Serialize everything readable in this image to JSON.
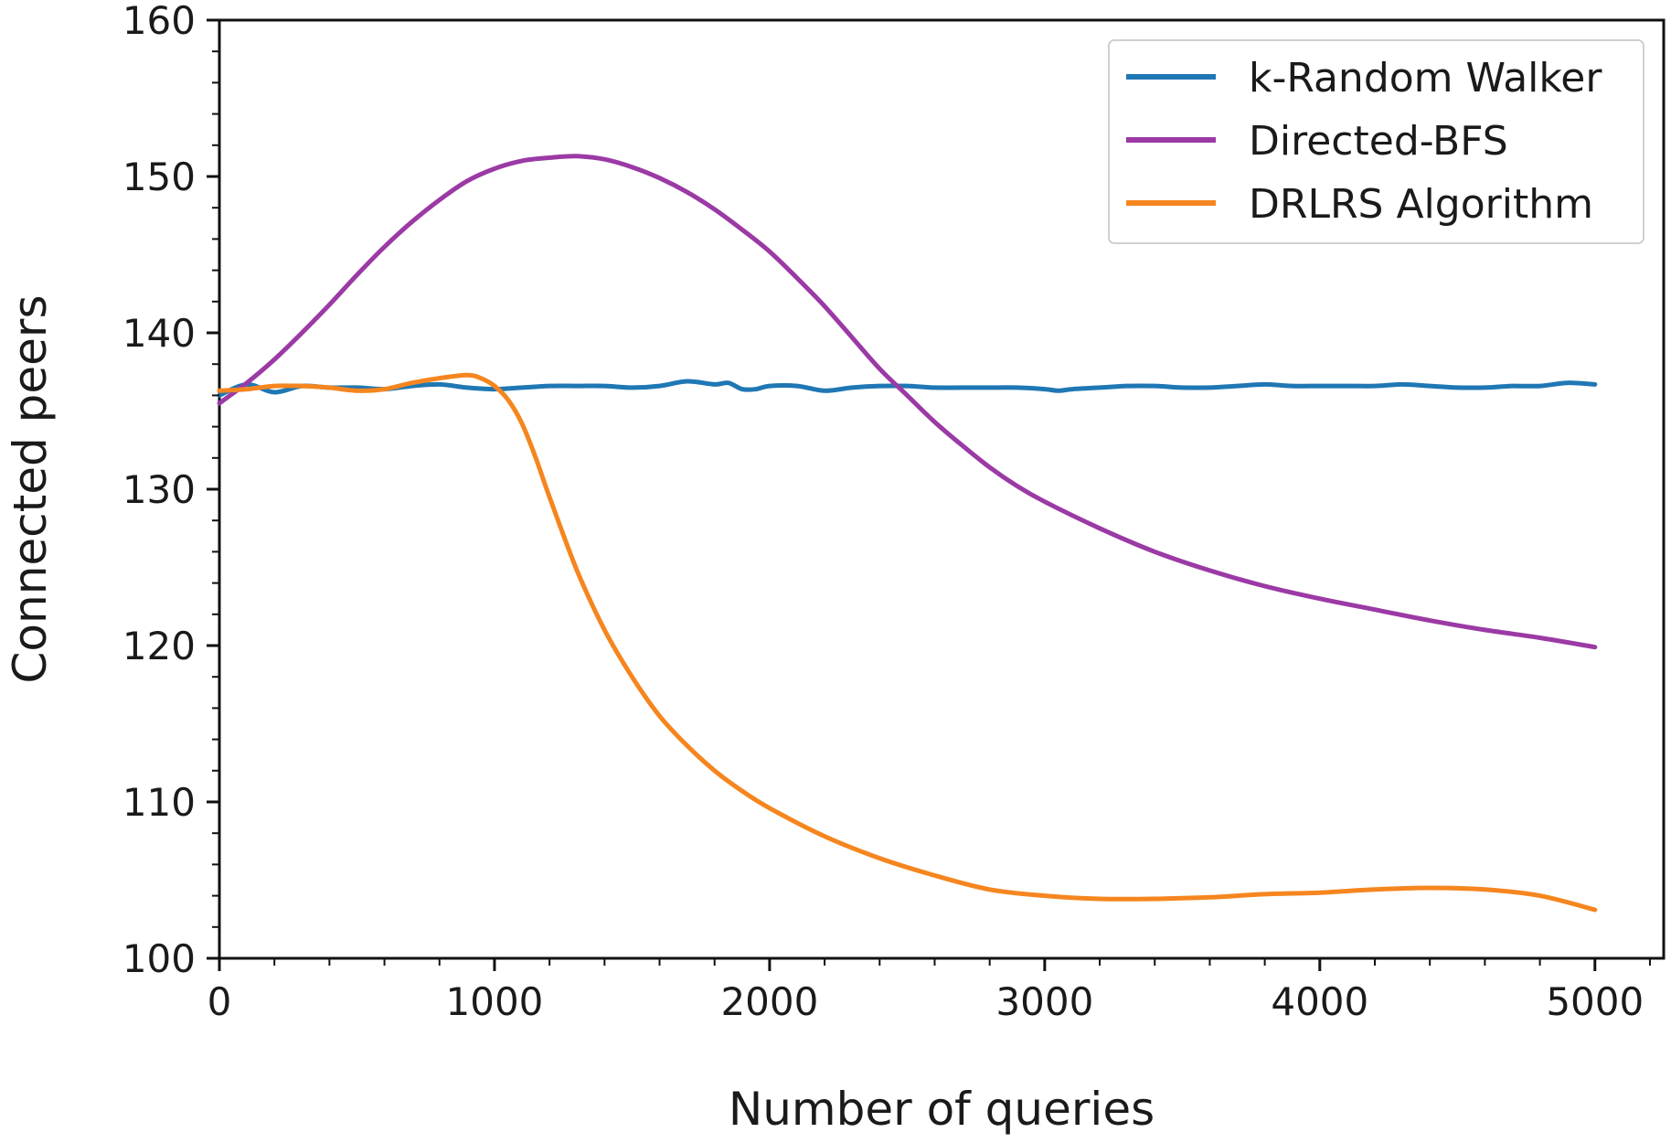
{
  "chart_data": {
    "type": "line",
    "xlabel": "Number of queries",
    "ylabel": "Connected peers",
    "xlim": [
      0,
      5250
    ],
    "ylim": [
      100,
      160
    ],
    "xticks": [
      0,
      1000,
      2000,
      3000,
      4000,
      5000
    ],
    "yticks": [
      100,
      110,
      120,
      130,
      140,
      150,
      160
    ],
    "xtick_labels": [
      "0",
      "1000",
      "2000",
      "3000",
      "4000",
      "5000"
    ],
    "ytick_labels": [
      "100",
      "110",
      "120",
      "130",
      "140",
      "150",
      "160"
    ],
    "grid": false,
    "legend_position": "top-right",
    "series": [
      {
        "name": "k-Random Walker",
        "color": "#1f77b4",
        "x": [
          0,
          100,
          200,
          300,
          400,
          500,
          600,
          700,
          800,
          900,
          1000,
          1100,
          1200,
          1300,
          1400,
          1500,
          1600,
          1700,
          1800,
          1850,
          1900,
          1950,
          2000,
          2100,
          2200,
          2300,
          2400,
          2500,
          2600,
          2700,
          2800,
          2900,
          3000,
          3050,
          3100,
          3200,
          3300,
          3400,
          3500,
          3600,
          3700,
          3800,
          3900,
          4000,
          4100,
          4200,
          4300,
          4400,
          4500,
          4600,
          4700,
          4800,
          4900,
          5000
        ],
        "y": [
          136.0,
          136.7,
          136.2,
          136.6,
          136.5,
          136.5,
          136.4,
          136.6,
          136.7,
          136.5,
          136.4,
          136.5,
          136.6,
          136.6,
          136.6,
          136.5,
          136.6,
          136.9,
          136.7,
          136.8,
          136.4,
          136.4,
          136.6,
          136.6,
          136.3,
          136.5,
          136.6,
          136.6,
          136.5,
          136.5,
          136.5,
          136.5,
          136.4,
          136.3,
          136.4,
          136.5,
          136.6,
          136.6,
          136.5,
          136.5,
          136.6,
          136.7,
          136.6,
          136.6,
          136.6,
          136.6,
          136.7,
          136.6,
          136.5,
          136.5,
          136.6,
          136.6,
          136.8,
          136.7
        ]
      },
      {
        "name": "Directed-BFS",
        "color": "#9b3aa5",
        "x": [
          0,
          100,
          200,
          300,
          400,
          500,
          600,
          700,
          800,
          900,
          1000,
          1100,
          1200,
          1300,
          1400,
          1500,
          1600,
          1700,
          1800,
          1900,
          2000,
          2100,
          2200,
          2300,
          2400,
          2500,
          2600,
          2700,
          2800,
          2900,
          3000,
          3200,
          3400,
          3600,
          3800,
          4000,
          4200,
          4400,
          4600,
          4800,
          5000
        ],
        "y": [
          135.5,
          136.8,
          138.3,
          140.0,
          141.8,
          143.7,
          145.5,
          147.1,
          148.5,
          149.7,
          150.5,
          151.0,
          151.2,
          151.3,
          151.1,
          150.6,
          149.9,
          149.0,
          147.9,
          146.6,
          145.2,
          143.5,
          141.7,
          139.7,
          137.7,
          136.0,
          134.3,
          132.8,
          131.4,
          130.2,
          129.2,
          127.5,
          126.0,
          124.8,
          123.8,
          123.0,
          122.3,
          121.6,
          121.0,
          120.5,
          119.9
        ]
      },
      {
        "name": "DRLRS Algorithm",
        "color": "#f5861f",
        "x": [
          0,
          100,
          200,
          300,
          400,
          500,
          600,
          700,
          800,
          900,
          950,
          1000,
          1050,
          1100,
          1150,
          1200,
          1300,
          1400,
          1500,
          1600,
          1700,
          1800,
          1900,
          2000,
          2200,
          2400,
          2600,
          2800,
          3000,
          3200,
          3400,
          3600,
          3800,
          4000,
          4200,
          4400,
          4600,
          4800,
          5000
        ],
        "y": [
          136.3,
          136.4,
          136.6,
          136.6,
          136.5,
          136.3,
          136.4,
          136.8,
          137.1,
          137.3,
          137.1,
          136.6,
          135.7,
          134.2,
          132.0,
          129.5,
          124.8,
          121.0,
          118.0,
          115.5,
          113.6,
          112.0,
          110.7,
          109.6,
          107.8,
          106.4,
          105.3,
          104.4,
          104.0,
          103.8,
          103.8,
          103.9,
          104.1,
          104.2,
          104.4,
          104.5,
          104.4,
          104.0,
          103.1
        ]
      }
    ]
  }
}
